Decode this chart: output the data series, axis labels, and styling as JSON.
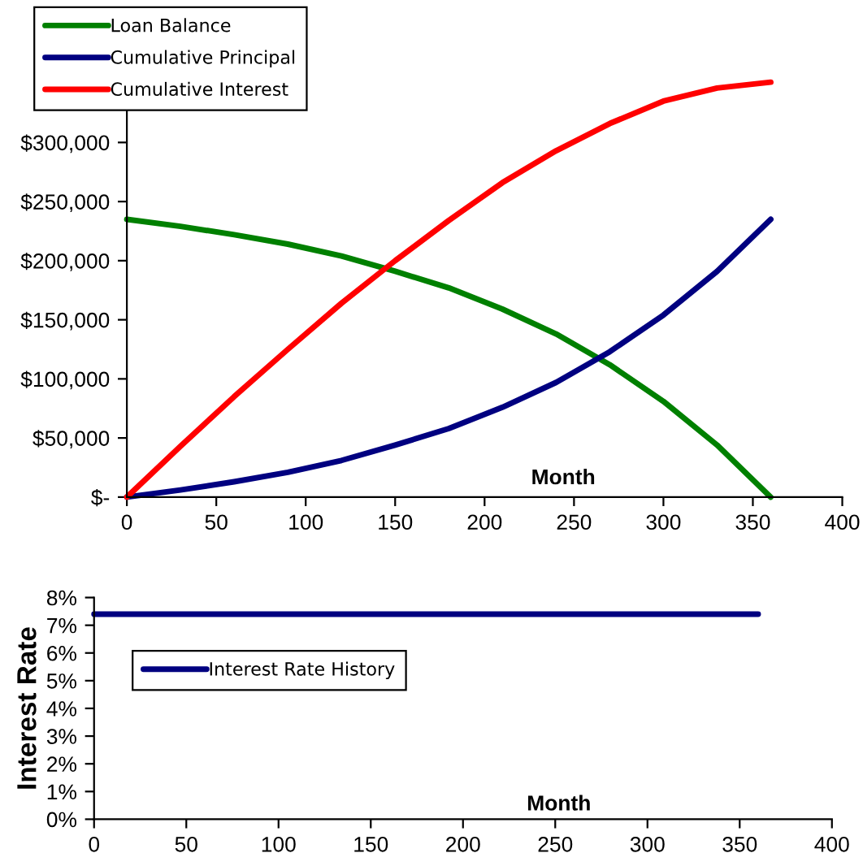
{
  "chart_data": [
    {
      "type": "line",
      "xlabel": "Month",
      "x": [
        0,
        30,
        60,
        90,
        120,
        150,
        180,
        210,
        240,
        270,
        300,
        330,
        360
      ],
      "series": [
        {
          "name": "Loan Balance",
          "color": "#008000",
          "values": [
            235000,
            229000,
            222000,
            214000,
            204000,
            191000,
            177000,
            159000,
            138000,
            112000,
            81000,
            44000,
            0
          ]
        },
        {
          "name": "Cumulative Principal",
          "color": "#000080",
          "values": [
            0,
            6000,
            13000,
            21000,
            31000,
            44000,
            58000,
            76000,
            97000,
            123000,
            154000,
            191000,
            235000
          ]
        },
        {
          "name": "Cumulative Interest",
          "color": "#ff0000",
          "values": [
            0,
            43000,
            85000,
            125000,
            164000,
            200000,
            234000,
            266000,
            293000,
            316000,
            335000,
            346000,
            351000
          ]
        }
      ],
      "xlim": [
        0,
        400
      ],
      "xticks": [
        0,
        50,
        100,
        150,
        200,
        250,
        300,
        350,
        400
      ],
      "ylim": [
        0,
        400000
      ],
      "yticks": [
        {
          "value": 0,
          "label": "$-"
        },
        {
          "value": 50000,
          "label": "$50,000"
        },
        {
          "value": 100000,
          "label": "$100,000"
        },
        {
          "value": 150000,
          "label": "$150,000"
        },
        {
          "value": 200000,
          "label": "$200,000"
        },
        {
          "value": 250000,
          "label": "$250,000"
        },
        {
          "value": 300000,
          "label": "$300,000"
        }
      ],
      "legend": "top left",
      "grid": false,
      "marker": "none",
      "line_style": "solid"
    },
    {
      "type": "line",
      "xlabel": "Month",
      "ylabel": "Interest Rate",
      "x": [
        0,
        360
      ],
      "series": [
        {
          "name": "Interest Rate History",
          "color": "#000080",
          "values": [
            7.4,
            7.4
          ]
        }
      ],
      "xlim": [
        0,
        400
      ],
      "xticks": [
        0,
        50,
        100,
        150,
        200,
        250,
        300,
        350,
        400
      ],
      "ylim": [
        0,
        8
      ],
      "yticks": [
        {
          "value": 0,
          "label": "0%"
        },
        {
          "value": 1,
          "label": "1%"
        },
        {
          "value": 2,
          "label": "2%"
        },
        {
          "value": 3,
          "label": "3%"
        },
        {
          "value": 4,
          "label": "4%"
        },
        {
          "value": 5,
          "label": "5%"
        },
        {
          "value": 6,
          "label": "6%"
        },
        {
          "value": 7,
          "label": "7%"
        },
        {
          "value": 8,
          "label": "8%"
        }
      ],
      "legend": "top left",
      "grid": false,
      "marker": "none",
      "line_style": "solid"
    }
  ]
}
